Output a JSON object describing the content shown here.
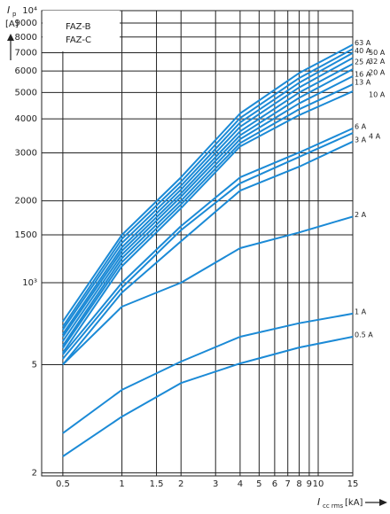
{
  "chart_data": {
    "type": "line",
    "ylabel_symbol": "I",
    "ylabel_sub": "p",
    "ylabel_unit": "[A]",
    "xlabel_symbol": "I",
    "xlabel_sub": "cc rms",
    "xlabel_unit": "[kA]",
    "annotations": [
      "FAZ-B",
      "FAZ-C"
    ],
    "log_x": true,
    "log_y": true,
    "grid": true,
    "color": "#1b8ad6",
    "xlim": [
      0.39,
      15
    ],
    "ylim": [
      195,
      10000
    ],
    "xticks": [
      0.5,
      1,
      1.5,
      2,
      3,
      4,
      5,
      6,
      7,
      8,
      9,
      10,
      15
    ],
    "yticks": [
      {
        "value": 10000,
        "label": "10⁴"
      },
      9000,
      8000,
      7000,
      6000,
      5000,
      4000,
      3000,
      2000,
      1500,
      {
        "value": 1000,
        "label": "10³"
      },
      {
        "value": 500,
        "label": "5"
      },
      {
        "value": 200,
        "label": "2"
      }
    ],
    "x": [
      0.5,
      1,
      2,
      4,
      8,
      15
    ],
    "series": [
      {
        "name": "63 A",
        "values": [
          720,
          1500,
          2440,
          4190,
          5900,
          7500
        ]
      },
      {
        "name": "50 A",
        "values": [
          690,
          1450,
          2350,
          4030,
          5650,
          7225
        ]
      },
      {
        "name": "40 A",
        "values": [
          672,
          1400,
          2270,
          3880,
          5430,
          6990
        ]
      },
      {
        "name": "32 A",
        "values": [
          648,
          1350,
          2200,
          3740,
          5220,
          6700
        ]
      },
      {
        "name": "25 A",
        "values": [
          633,
          1310,
          2130,
          3600,
          5000,
          6370
        ]
      },
      {
        "name": "20 A",
        "values": [
          610,
          1270,
          2070,
          3480,
          4780,
          6090
        ]
      },
      {
        "name": "16 A",
        "values": [
          587,
          1230,
          2000,
          3370,
          4560,
          5740
        ]
      },
      {
        "name": "13 A",
        "values": [
          575,
          1190,
          1940,
          3260,
          4340,
          5360
        ]
      },
      {
        "name": "10 A",
        "values": [
          553,
          1150,
          1880,
          3170,
          4130,
          5050
        ]
      },
      {
        "name": "6 A",
        "values": [
          545,
          1000,
          1615,
          2440,
          3010,
          3690
        ]
      },
      {
        "name": "4 A",
        "values": [
          525,
          960,
          1560,
          2320,
          2900,
          3550
        ]
      },
      {
        "name": "3 A",
        "values": [
          500,
          920,
          1420,
          2180,
          2670,
          3300
        ]
      },
      {
        "name": "2 A",
        "values": [
          500,
          817,
          1000,
          1340,
          1530,
          1750
        ]
      },
      {
        "name": "1 A",
        "values": [
          280,
          404,
          513,
          633,
          710,
          770
        ]
      },
      {
        "name": "0.5 A",
        "values": [
          230,
          322,
          428,
          505,
          578,
          633
        ]
      }
    ]
  }
}
